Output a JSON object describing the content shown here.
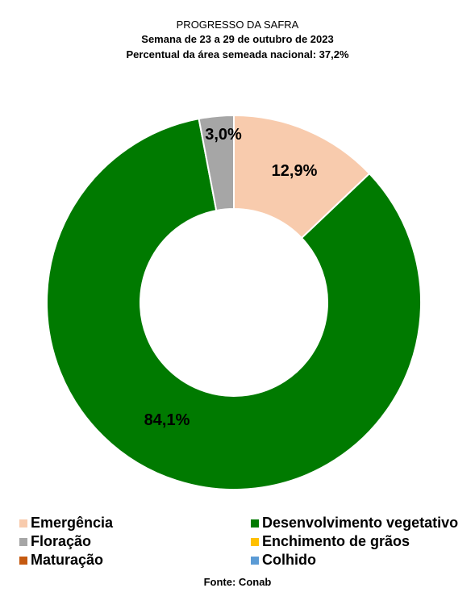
{
  "header": {
    "title": "PROGRESSO DA SAFRA",
    "subtitle": "Semana de  23 a 29 de outubro de 2023",
    "subtitle2": "Percentual da área semeada nacional: 37,2%"
  },
  "chart_data": {
    "type": "pie",
    "variant": "donut",
    "categories": [
      "Emergência",
      "Desenvolvimento vegetativo",
      "Floração",
      "Enchimento de grãos",
      "Maturação",
      "Colhido"
    ],
    "values": [
      12.9,
      84.1,
      3.0,
      0,
      0,
      0
    ],
    "data_labels": [
      "12,9%",
      "84,1%",
      "3,0%",
      "",
      "",
      ""
    ],
    "colors": [
      "#f8cbad",
      "#007a00",
      "#a6a6a6",
      "#ffc000",
      "#c55a11",
      "#5b9bd5"
    ],
    "legend_position": "bottom"
  },
  "source": "Fonte: Conab"
}
